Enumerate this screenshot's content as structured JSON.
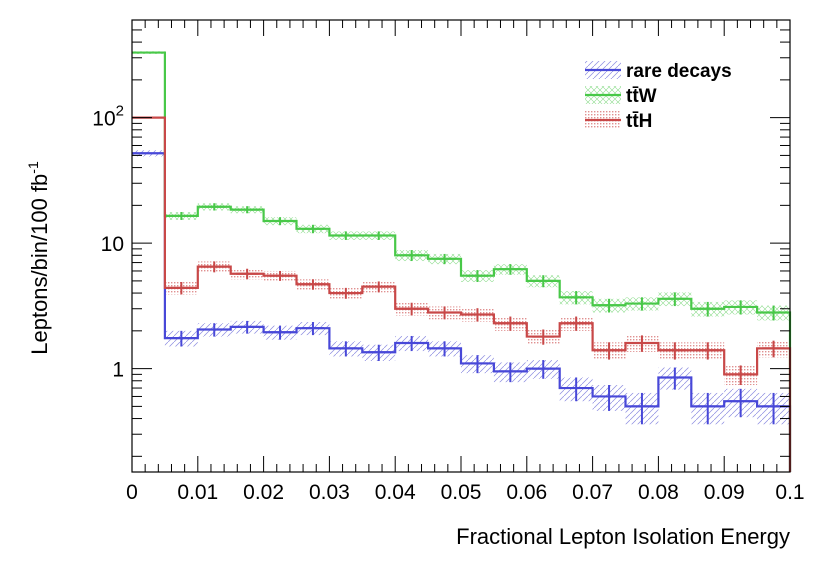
{
  "chart_data": {
    "type": "histogram",
    "title": "",
    "xlabel": "Fractional Lepton Isolation Energy",
    "ylabel": "Leptons/bin/100 fb",
    "ylabel_superscript": "-1",
    "xlim": [
      0,
      0.1
    ],
    "ylim": [
      0.15,
      600
    ],
    "yscale": "log",
    "bin_width": 0.005,
    "x_tick_labels": [
      "0",
      "0.01",
      "0.02",
      "0.03",
      "0.04",
      "0.05",
      "0.06",
      "0.07",
      "0.08",
      "0.09",
      "0.1"
    ],
    "x_tick_values": [
      0,
      0.01,
      0.02,
      0.03,
      0.04,
      0.05,
      0.06,
      0.07,
      0.08,
      0.09,
      0.1
    ],
    "y_tick_labels": [
      {
        "value": 1,
        "base": "1",
        "exp": ""
      },
      {
        "value": 10,
        "base": "10",
        "exp": ""
      },
      {
        "value": 100,
        "base": "10",
        "exp": "2"
      }
    ],
    "legend_position": "top-right",
    "series": [
      {
        "name": "rare decays",
        "color": "#4848d8",
        "band": "hatch",
        "values": [
          52,
          1.75,
          2.05,
          2.15,
          1.95,
          2.1,
          1.45,
          1.35,
          1.6,
          1.45,
          1.1,
          0.95,
          1.0,
          0.7,
          0.6,
          0.5,
          0.85,
          0.5,
          0.55,
          0.5
        ],
        "errors": [
          3,
          0.25,
          0.25,
          0.25,
          0.25,
          0.25,
          0.2,
          0.2,
          0.22,
          0.2,
          0.18,
          0.17,
          0.17,
          0.15,
          0.14,
          0.14,
          0.17,
          0.14,
          0.14,
          0.14
        ]
      },
      {
        "name": "tt̄W",
        "color": "#48c848",
        "band": "cross",
        "values": [
          330,
          16.5,
          19.5,
          18.5,
          15.0,
          13.0,
          11.5,
          11.5,
          8.0,
          7.5,
          5.5,
          6.2,
          5.0,
          3.7,
          3.2,
          3.3,
          3.6,
          3.0,
          3.1,
          2.8
        ],
        "errors": [
          8,
          1.2,
          1.3,
          1.2,
          1.1,
          1.0,
          0.9,
          0.9,
          0.8,
          0.7,
          0.6,
          0.6,
          0.55,
          0.45,
          0.4,
          0.4,
          0.45,
          0.4,
          0.4,
          0.38
        ]
      },
      {
        "name": "tt̄H",
        "color": "#c84848",
        "band": "dots",
        "values": [
          100,
          4.4,
          6.5,
          5.7,
          5.5,
          4.7,
          4.0,
          4.5,
          3.0,
          2.8,
          2.7,
          2.3,
          1.8,
          2.3,
          1.4,
          1.6,
          1.4,
          1.4,
          0.9,
          1.45
        ],
        "errors": [
          3,
          0.5,
          0.65,
          0.55,
          0.5,
          0.45,
          0.4,
          0.45,
          0.35,
          0.33,
          0.33,
          0.3,
          0.25,
          0.3,
          0.22,
          0.24,
          0.22,
          0.22,
          0.16,
          0.22
        ]
      }
    ]
  }
}
